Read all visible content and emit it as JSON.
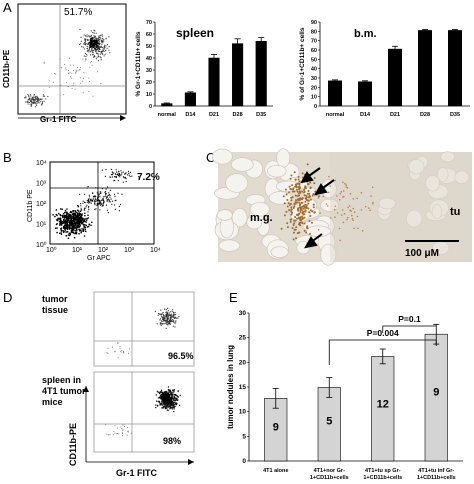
{
  "panels": {
    "a": "A",
    "b": "B",
    "c": "C",
    "d": "D",
    "e": "E"
  },
  "flow_a": {
    "pct": "51.7%",
    "xlabel": "Gr-1 FITC",
    "ylabel": "CD11b-PE"
  },
  "flow_b": {
    "pct": "7.2%",
    "xlabel": "Gr APC",
    "ylabel": "CD11b PE",
    "xticks": [
      "10⁰",
      "10¹",
      "10²",
      "10³",
      "10⁴"
    ],
    "yticks": [
      "10⁰",
      "10¹",
      "10²",
      "10³",
      "10⁴"
    ]
  },
  "histo_c": {
    "mg": "m.g.",
    "tu": "tu",
    "scale": "100 μM"
  },
  "flow_d": {
    "label_top": [
      "tumor",
      "tissue"
    ],
    "label_bottom": [
      "spleen in",
      "4T1 tumor",
      "mice"
    ],
    "pct_top": "96.5%",
    "pct_bottom": "98%",
    "xlabel": "Gr-1 FITC",
    "ylabel": "CD11b-PE"
  },
  "chart_data": [
    {
      "type": "bar",
      "title": "spleen",
      "ylabel": "% Gr-1+CD11b+ cells",
      "categories": [
        "normal",
        "D14",
        "D21",
        "D28",
        "D35"
      ],
      "values": [
        2,
        11,
        40,
        52,
        54
      ],
      "errors": [
        0.5,
        0.8,
        3,
        4,
        3
      ],
      "ylim": [
        0,
        70
      ],
      "yticks": [
        "0",
        "10",
        "20",
        "30",
        "40",
        "50",
        "60",
        "70"
      ]
    },
    {
      "type": "bar",
      "title": "b.m.",
      "ylabel": "% of Gr-1+CD11b+ cells",
      "categories": [
        "normal",
        "D14",
        "D21",
        "D28",
        "D35"
      ],
      "values": [
        27,
        26,
        61,
        81,
        81
      ],
      "errors": [
        1,
        1,
        3,
        1,
        1
      ],
      "ylim": [
        0,
        90
      ],
      "yticks": [
        "0",
        "10",
        "20",
        "30",
        "40",
        "50",
        "60",
        "70",
        "80",
        "90"
      ]
    },
    {
      "type": "bar",
      "title": "",
      "ylabel": "tumor nodules in lung",
      "categories": [
        "4T1 alone",
        "4T1+nor Gr-1+CD11b+cells",
        "4T1+tu sp Gr-1+CD11b+cells",
        "4T1+tu inf Gr-1+CD11b+cells"
      ],
      "category_lines": [
        [
          "4T1 alone"
        ],
        [
          "4T1+nor Gr-",
          "1+CD11b+cells"
        ],
        [
          "4T1+tu sp Gr-",
          "1+CD11b+cells"
        ],
        [
          "4T1+tu inf Gr-",
          "1+CD11b+cells"
        ]
      ],
      "values": [
        12.7,
        14.9,
        21.2,
        25.7
      ],
      "errors": [
        2,
        2,
        1.5,
        2
      ],
      "bar_labels": [
        "9",
        "5",
        "12",
        "9"
      ],
      "ylim": [
        0,
        30
      ],
      "yticks": [
        "0",
        "5",
        "10",
        "15",
        "20",
        "25",
        "30"
      ],
      "annotations": [
        "P=0.004",
        "P=0.1"
      ]
    }
  ]
}
